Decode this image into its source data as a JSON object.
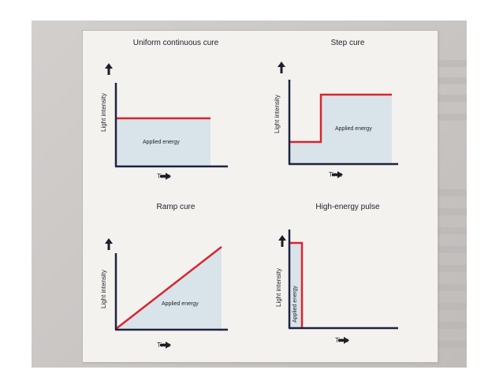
{
  "diagram": {
    "colors": {
      "axis": "#1f2340",
      "curve": "#d8252e",
      "fill": "#d9e4ea",
      "background": "#f4f2ef"
    },
    "panels": [
      {
        "title": "Uniform continuous cure",
        "ylabel": "Light intensity",
        "xlabel": "Time",
        "energy_label": "Applied energy",
        "profile": "uniform"
      },
      {
        "title": "Step cure",
        "ylabel": "Light intensity",
        "xlabel": "Time",
        "energy_label": "Applied energy",
        "profile": "step"
      },
      {
        "title": "Ramp cure",
        "ylabel": "Light intensity",
        "xlabel": "Time",
        "energy_label": "Applied energy",
        "profile": "ramp"
      },
      {
        "title": "High-energy pulse",
        "ylabel": "Light intensity",
        "xlabel": "Time",
        "energy_label": "Applied energy",
        "profile": "pulse"
      }
    ]
  }
}
